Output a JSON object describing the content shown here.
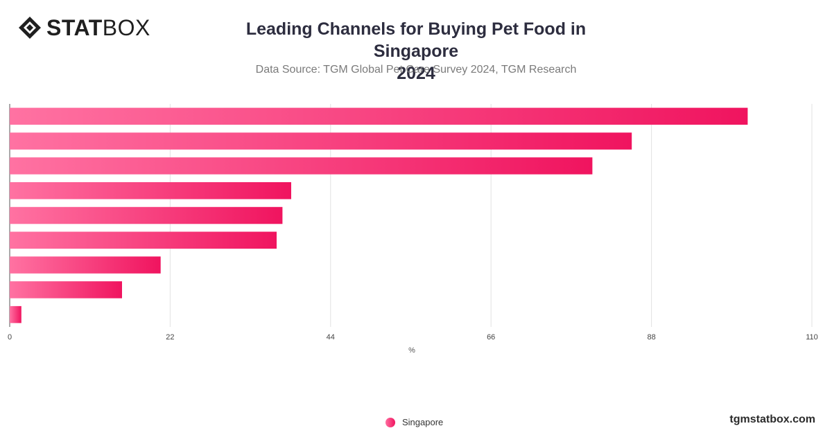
{
  "brand": {
    "logo_bold": "STAT",
    "logo_light": "BOX"
  },
  "header": {
    "title_line1": "Leading Channels for Buying Pet Food in Singapore",
    "title_line2": "2024",
    "subtitle": "Data Source: TGM Global Pet Care Survey 2024, TGM Research"
  },
  "legend": {
    "label": "Singapore"
  },
  "footer": {
    "site": "tgmstatbox.com"
  },
  "colors": {
    "bar_start": "#ff72a2",
    "bar_end": "#f0145f",
    "grid": "#e2e2e2",
    "axis": "#555555"
  },
  "chart_data": {
    "type": "bar",
    "orientation": "horizontal",
    "title": "Leading Channels for Buying Pet Food in Singapore 2024",
    "subtitle": "Data Source: TGM Global Pet Care Survey 2024, TGM Research",
    "xlabel": "%",
    "xlim": [
      0,
      110
    ],
    "x_ticks": [
      0,
      22,
      44,
      66,
      88,
      110
    ],
    "categories": [
      "",
      "",
      "",
      "",
      "",
      "",
      "",
      "",
      ""
    ],
    "series": [
      {
        "name": "Singapore",
        "values": [
          101.2,
          85.3,
          79.9,
          38.6,
          37.4,
          36.6,
          20.7,
          15.4,
          1.6
        ]
      }
    ],
    "grid": true,
    "legend_position": "bottom-center"
  }
}
